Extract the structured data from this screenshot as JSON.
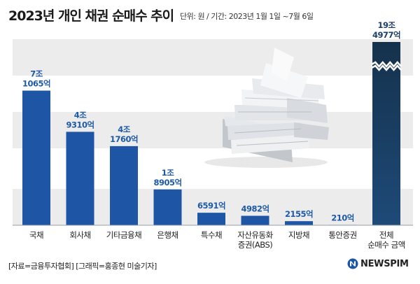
{
  "header": {
    "title": "2023년 개인 채권 순매수 추이",
    "subtitle": "단위: 원 / 기간: 2023년 1월 1일 ~7월 6일"
  },
  "footer": {
    "source": "[자료=금융투자협회] [그래픽=홍종현 미술기자]",
    "brand": "NEWSPIM"
  },
  "colors": {
    "bar": "#1e55a5",
    "bar_total": "#15324c",
    "value_text": "#1e5aa8",
    "band": "#ececec"
  },
  "illustration": "stack-of-papers",
  "chart_data": {
    "type": "bar",
    "title": "2023년 개인 채권 순매수 추이",
    "unit": "원",
    "period": "2023년 1월 1일 ~7월 6일",
    "axis_break_on": "전체 순매수 금액",
    "categories": [
      [
        "국채"
      ],
      [
        "회사채"
      ],
      [
        "기타금융채"
      ],
      [
        "은행채"
      ],
      [
        "특수채"
      ],
      [
        "자산유동화",
        "증권(ABS)"
      ],
      [
        "지방채"
      ],
      [
        "통안증권"
      ],
      [
        "전체",
        "순매수 금액"
      ]
    ],
    "values_eok": [
      71065,
      49310,
      41760,
      18905,
      6591,
      4982,
      2155,
      210,
      194977
    ],
    "value_labels": [
      [
        "7조",
        "1065억"
      ],
      [
        "4조",
        "9310억"
      ],
      [
        "4조",
        "1760억"
      ],
      [
        "1조",
        "8905억"
      ],
      [
        "6591억"
      ],
      [
        "4982억"
      ],
      [
        "2155억"
      ],
      [
        "210억"
      ],
      [
        "19조",
        "4977억"
      ]
    ]
  }
}
